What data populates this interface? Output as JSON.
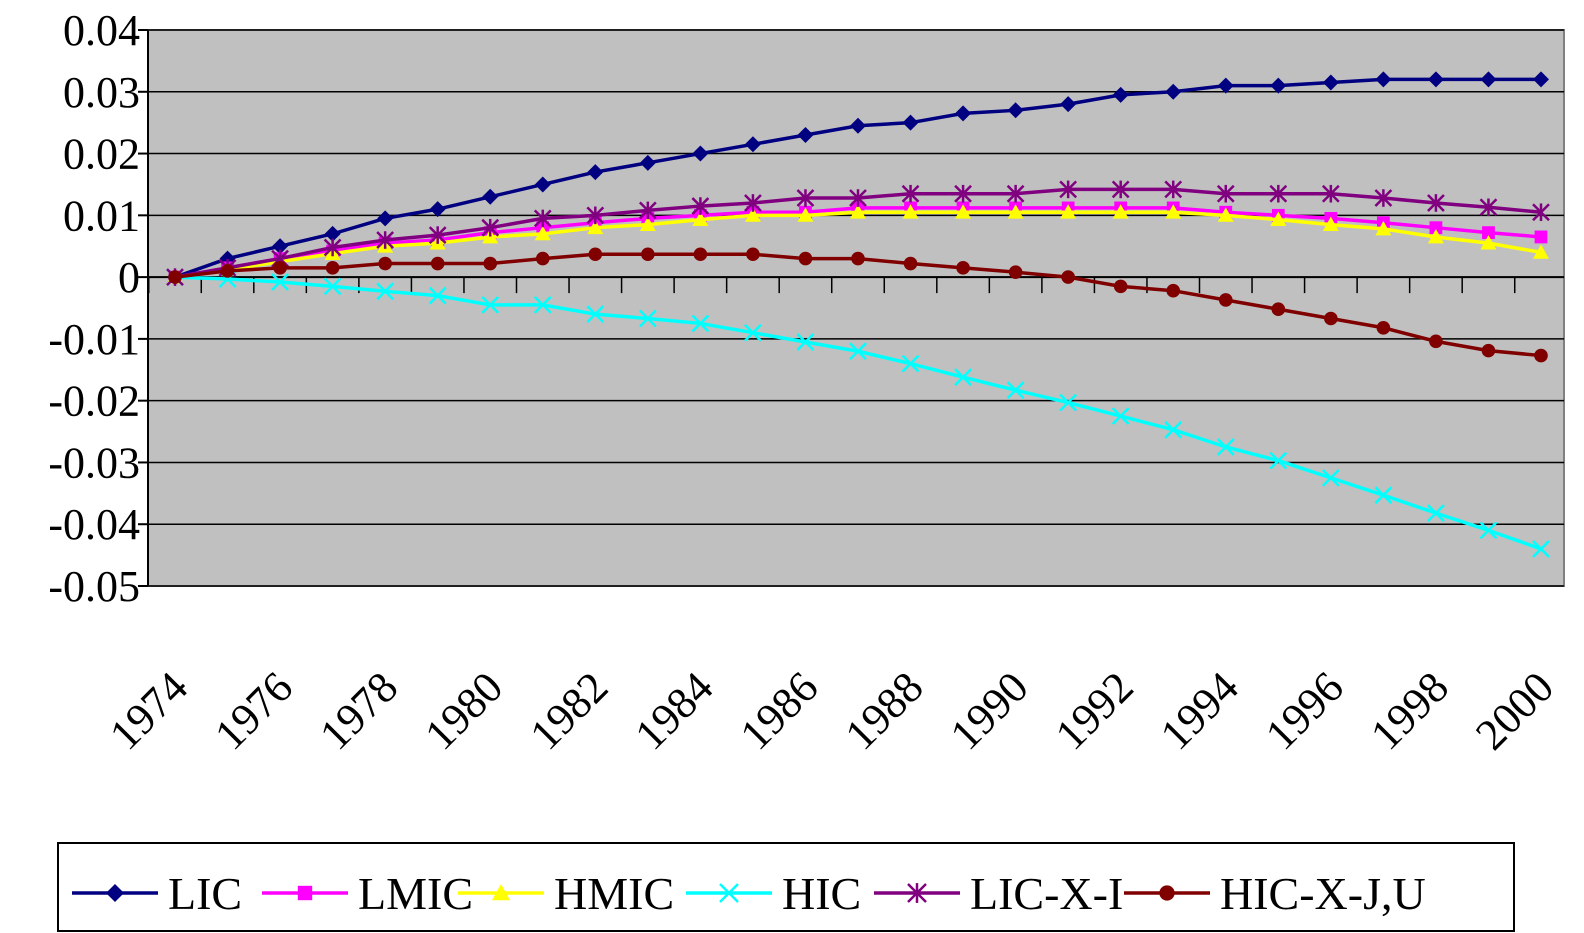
{
  "chart_data": {
    "type": "line",
    "title": "",
    "xlabel": "",
    "ylabel": "",
    "x": [
      1974,
      1975,
      1976,
      1977,
      1978,
      1979,
      1980,
      1981,
      1982,
      1983,
      1984,
      1985,
      1986,
      1987,
      1988,
      1989,
      1990,
      1991,
      1992,
      1993,
      1994,
      1995,
      1996,
      1997,
      1998,
      1999,
      2000
    ],
    "x_tick_labels": [
      "1974",
      "1976",
      "1978",
      "1980",
      "1982",
      "1984",
      "1986",
      "1988",
      "1990",
      "1992",
      "1994",
      "1996",
      "1998",
      "2000"
    ],
    "y_tick_labels": [
      "0.04",
      "0.03",
      "0.02",
      "0.01",
      "0",
      "-0.01",
      "-0.02",
      "-0.03",
      "-0.04",
      "-0.05"
    ],
    "ylim": [
      -0.05,
      0.04
    ],
    "grid": "horizontal",
    "plot_background": "#c0c0c0",
    "legend_position": "bottom",
    "series": [
      {
        "name": "LIC",
        "color": "#000080",
        "marker": "diamond",
        "values": [
          0.0,
          0.003,
          0.005,
          0.007,
          0.0095,
          0.011,
          0.013,
          0.015,
          0.017,
          0.0185,
          0.02,
          0.0215,
          0.023,
          0.0245,
          0.025,
          0.0265,
          0.027,
          0.028,
          0.0295,
          0.03,
          0.031,
          0.031,
          0.0315,
          0.032,
          0.032,
          0.032,
          0.032
        ]
      },
      {
        "name": "LMIC",
        "color": "#ff00ff",
        "marker": "square",
        "values": [
          0.0,
          0.0015,
          0.003,
          0.0042,
          0.0055,
          0.006,
          0.0072,
          0.008,
          0.0088,
          0.0095,
          0.01,
          0.0105,
          0.0105,
          0.0112,
          0.0112,
          0.0112,
          0.0112,
          0.0112,
          0.0112,
          0.0112,
          0.0105,
          0.01,
          0.0095,
          0.0088,
          0.008,
          0.0072,
          0.0065
        ]
      },
      {
        "name": "HMIC",
        "color": "#ffff00",
        "marker": "triangle",
        "values": [
          0.0,
          0.0012,
          0.0025,
          0.0038,
          0.005,
          0.0055,
          0.0065,
          0.007,
          0.008,
          0.0085,
          0.0093,
          0.01,
          0.01,
          0.0105,
          0.0105,
          0.0105,
          0.0105,
          0.0105,
          0.0105,
          0.0105,
          0.01,
          0.0093,
          0.0085,
          0.0078,
          0.0065,
          0.0055,
          0.004
        ]
      },
      {
        "name": "HIC",
        "color": "#00ffff",
        "marker": "x",
        "values": [
          0.0,
          -0.0003,
          -0.0008,
          -0.0015,
          -0.0023,
          -0.003,
          -0.0045,
          -0.0045,
          -0.006,
          -0.0067,
          -0.0075,
          -0.009,
          -0.0105,
          -0.012,
          -0.014,
          -0.0162,
          -0.0183,
          -0.0203,
          -0.0225,
          -0.0247,
          -0.0275,
          -0.0297,
          -0.0325,
          -0.0353,
          -0.0382,
          -0.041,
          -0.044
        ]
      },
      {
        "name": "LIC-X-I",
        "color": "#800080",
        "marker": "asterisk",
        "values": [
          0.0,
          0.0015,
          0.003,
          0.0048,
          0.006,
          0.0068,
          0.008,
          0.0095,
          0.01,
          0.0108,
          0.0115,
          0.012,
          0.0128,
          0.0128,
          0.0135,
          0.0135,
          0.0135,
          0.0142,
          0.0142,
          0.0142,
          0.0135,
          0.0135,
          0.0135,
          0.0128,
          0.012,
          0.0113,
          0.0105
        ]
      },
      {
        "name": "HIC-X-J,U",
        "color": "#800000",
        "marker": "circle",
        "values": [
          0.0,
          0.001,
          0.0015,
          0.0015,
          0.0022,
          0.0022,
          0.0022,
          0.003,
          0.0037,
          0.0037,
          0.0037,
          0.0037,
          0.003,
          0.003,
          0.0022,
          0.0015,
          0.0008,
          0.0,
          -0.0015,
          -0.0022,
          -0.0037,
          -0.0052,
          -0.0067,
          -0.0082,
          -0.0104,
          -0.0119,
          -0.0127
        ]
      }
    ]
  }
}
